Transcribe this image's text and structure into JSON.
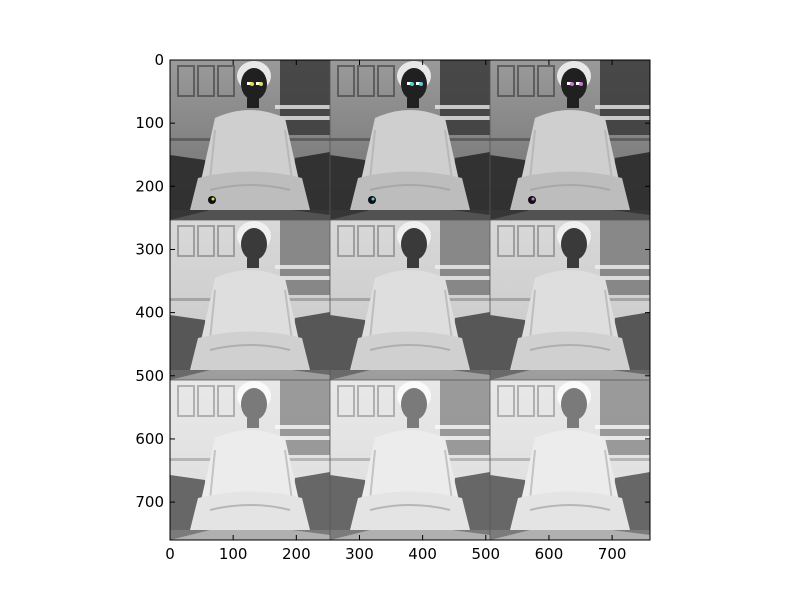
{
  "figure": {
    "description_type": "image-grid",
    "rows": 3,
    "cols": 3,
    "image_extent": [
      0,
      760
    ],
    "x_ticks": [
      "0",
      "100",
      "200",
      "300",
      "400",
      "500",
      "600",
      "700"
    ],
    "y_ticks": [
      "0",
      "100",
      "200",
      "300",
      "400",
      "500",
      "600",
      "700"
    ],
    "tile_tone": [
      [
        "dark",
        "dark",
        "dark"
      ],
      [
        "medium",
        "medium",
        "medium"
      ],
      [
        "light",
        "light",
        "light"
      ]
    ],
    "tile_eye_marker_colors": [
      [
        "#e0e050",
        "#50d0e0",
        "#d070e0"
      ]
    ],
    "background_color": "#ffffff",
    "frame_color": "#000000"
  }
}
